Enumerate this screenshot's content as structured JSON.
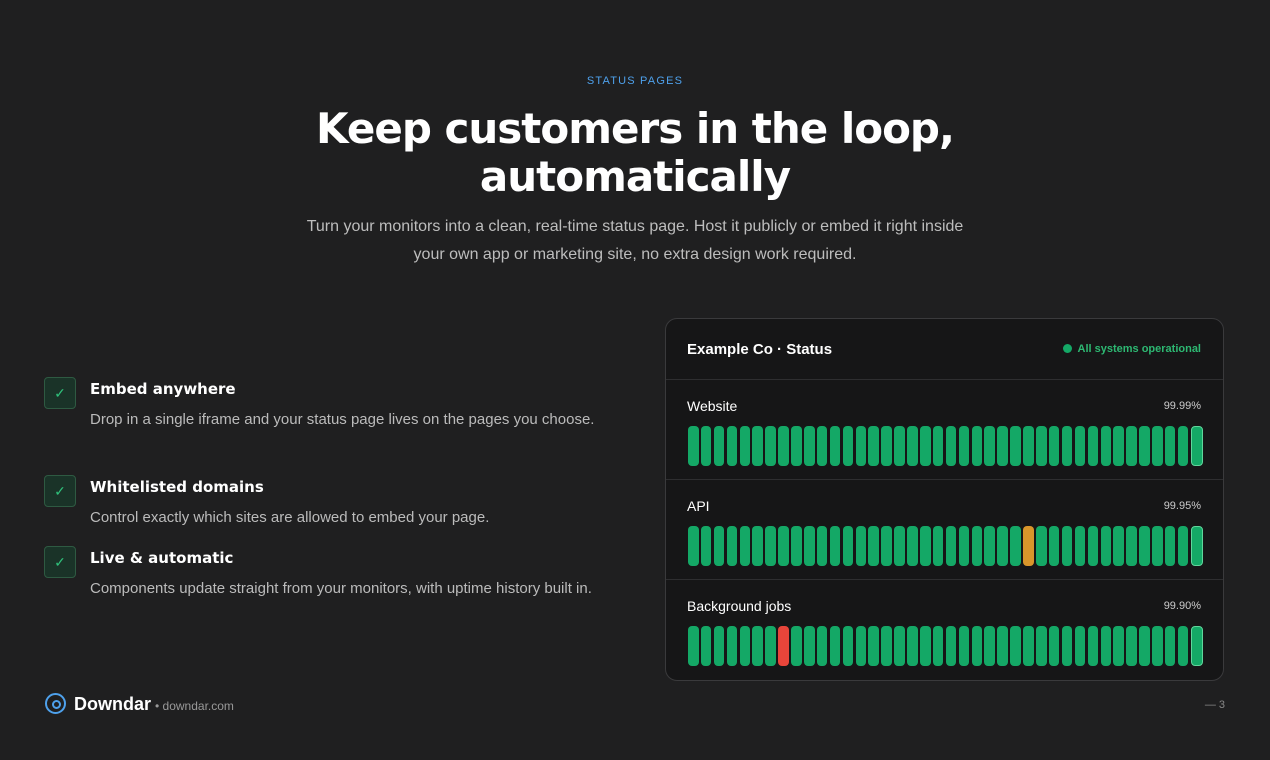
{
  "eyebrow": "STATUS PAGES",
  "title_lines": [
    "Keep customers in the loop,",
    "automatically"
  ],
  "subtitle_lines": [
    "Turn your monitors into a clean, real-time status page. Host it publicly or embed it right inside",
    "your own app or marketing site, no extra design work required."
  ],
  "features": [
    {
      "title": "Embed anywhere",
      "description": "Drop in a single iframe and your status page lives on the pages you choose."
    },
    {
      "title": "Whitelisted domains",
      "description": "Control exactly which sites are allowed to embed your page."
    },
    {
      "title": "Live & automatic",
      "description": "Components update straight from your monitors, with uptime history built in."
    }
  ],
  "status_card": {
    "title": "Example Co · Status",
    "overall": "All systems operational",
    "status_colors": {
      "up": "#14a866",
      "degraded": "#d9962b",
      "down": "#e8453a"
    },
    "components": [
      {
        "name": "Website",
        "uptime": "99.99%",
        "history": [
          "up",
          "up",
          "up",
          "up",
          "up",
          "up",
          "up",
          "up",
          "up",
          "up",
          "up",
          "up",
          "up",
          "up",
          "up",
          "up",
          "up",
          "up",
          "up",
          "up",
          "up",
          "up",
          "up",
          "up",
          "up",
          "up",
          "up",
          "up",
          "up",
          "up",
          "up",
          "up",
          "up",
          "up",
          "up",
          "up",
          "up",
          "up",
          "up",
          "up"
        ]
      },
      {
        "name": "API",
        "uptime": "99.95%",
        "history": [
          "up",
          "up",
          "up",
          "up",
          "up",
          "up",
          "up",
          "up",
          "up",
          "up",
          "up",
          "up",
          "up",
          "up",
          "up",
          "up",
          "up",
          "up",
          "up",
          "up",
          "up",
          "up",
          "up",
          "up",
          "up",
          "up",
          "degraded",
          "up",
          "up",
          "up",
          "up",
          "up",
          "up",
          "up",
          "up",
          "up",
          "up",
          "up",
          "up",
          "up"
        ]
      },
      {
        "name": "Background jobs",
        "uptime": "99.90%",
        "history": [
          "up",
          "up",
          "up",
          "up",
          "up",
          "up",
          "up",
          "down",
          "up",
          "up",
          "up",
          "up",
          "up",
          "up",
          "up",
          "up",
          "up",
          "up",
          "up",
          "up",
          "up",
          "up",
          "up",
          "up",
          "up",
          "up",
          "up",
          "up",
          "up",
          "up",
          "up",
          "up",
          "up",
          "up",
          "up",
          "up",
          "up",
          "up",
          "up",
          "up"
        ]
      }
    ]
  },
  "footer": {
    "brand": "Downdar",
    "site": "• downdar.com",
    "page": "— 3"
  }
}
